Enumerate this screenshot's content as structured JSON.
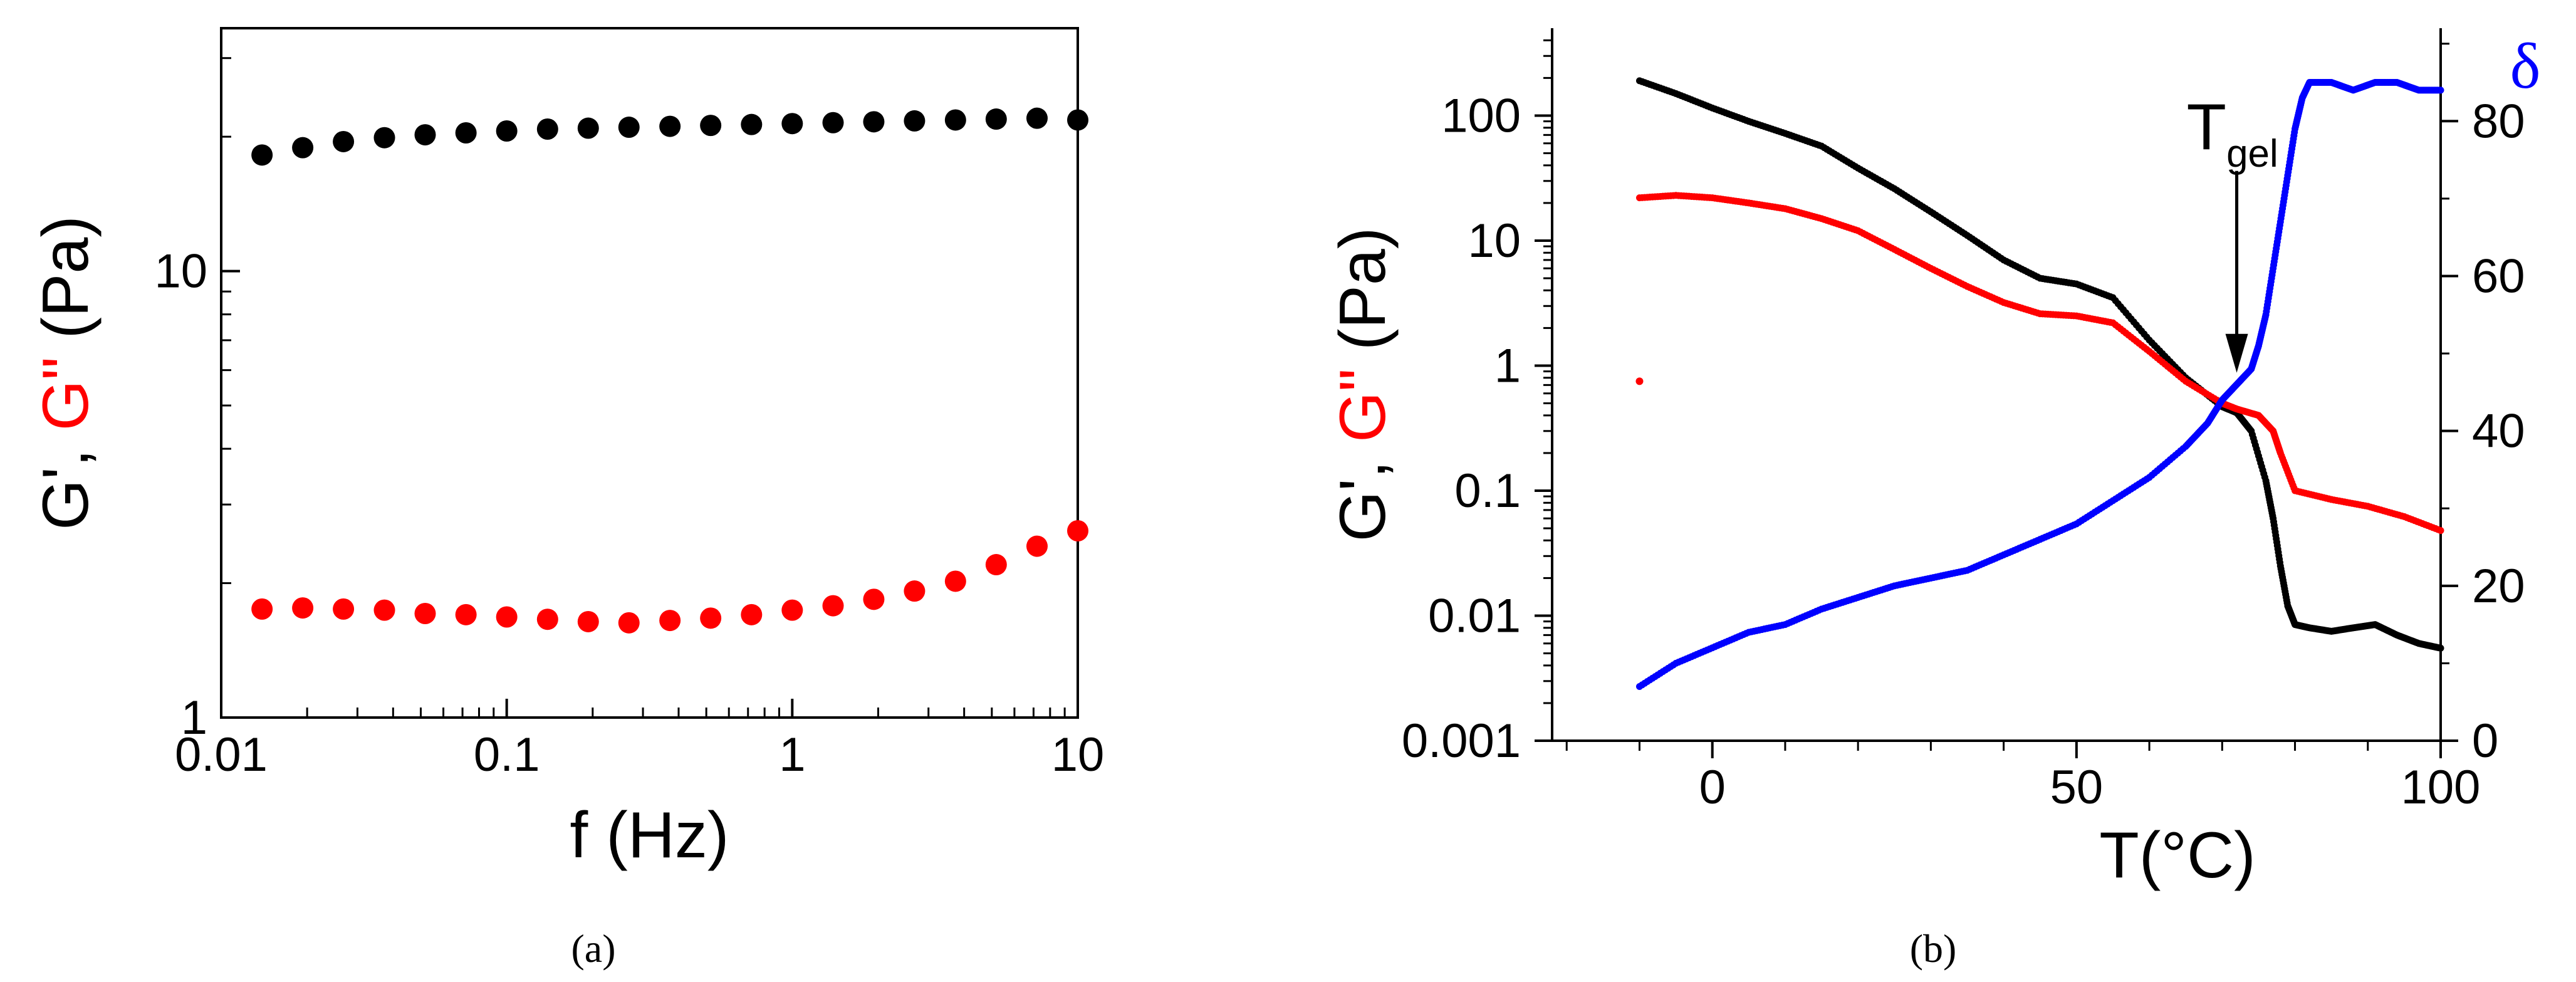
{
  "colors": {
    "gprime": "#000000",
    "gdouble": "#ff0000",
    "delta": "#0000ff",
    "axis": "#000000"
  },
  "chart_data": [
    {
      "type": "scatter",
      "panel_label": "(a)",
      "xscale": "log",
      "yscale": "log",
      "xlim": [
        0.01,
        10
      ],
      "ylim": [
        1,
        35
      ],
      "xlabel": "f (Hz)",
      "ylabel_parts": [
        "G'",
        ", ",
        "G\""
      ],
      "xticks": [
        0.01,
        0.1,
        1,
        10
      ],
      "xtick_labels": [
        "0.01",
        "0.1",
        "1",
        "10"
      ],
      "yticks": [
        1,
        10
      ],
      "ytick_labels": [
        "1",
        "10"
      ],
      "x": [
        0.0139,
        0.0193,
        0.0268,
        0.0373,
        0.0518,
        0.072,
        0.1,
        0.139,
        0.193,
        0.268,
        0.373,
        0.518,
        0.72,
        1.0,
        1.39,
        1.93,
        2.68,
        3.73,
        5.18,
        7.2,
        10.0
      ],
      "series": [
        {
          "name": "G'",
          "color": "#000000",
          "values": [
            18.2,
            18.9,
            19.5,
            19.9,
            20.2,
            20.4,
            20.6,
            20.8,
            20.9,
            21.0,
            21.1,
            21.2,
            21.3,
            21.4,
            21.5,
            21.6,
            21.7,
            21.8,
            21.9,
            22.0,
            21.8
          ]
        },
        {
          "name": "G\"",
          "color": "#ff0000",
          "values": [
            1.75,
            1.76,
            1.75,
            1.74,
            1.71,
            1.7,
            1.68,
            1.66,
            1.64,
            1.63,
            1.65,
            1.67,
            1.7,
            1.74,
            1.78,
            1.84,
            1.92,
            2.02,
            2.2,
            2.42,
            2.62
          ]
        }
      ]
    },
    {
      "type": "scatter",
      "panel_label": "(b)",
      "xscale": "linear",
      "yscale": "log",
      "xlim": [
        -22,
        100
      ],
      "ylim": [
        0.001,
        500
      ],
      "y2lim": [
        0,
        92
      ],
      "xlabel": "T(°C)",
      "ylabel_parts": [
        "G'",
        ", ",
        "G\"",
        " (Pa)"
      ],
      "y2label": "δ",
      "xticks": [
        0,
        50,
        100
      ],
      "xtick_labels": [
        "0",
        "50",
        "100"
      ],
      "yticks": [
        0.001,
        0.01,
        0.1,
        1,
        10,
        100
      ],
      "ytick_labels": [
        "0.001",
        "0.01",
        "0.1",
        "1",
        "10",
        "100"
      ],
      "y2ticks": [
        0,
        20,
        40,
        60,
        80
      ],
      "y2tick_labels": [
        "0",
        "20",
        "40",
        "60",
        "80"
      ],
      "annotation": {
        "text": "T",
        "subscript": "gel",
        "x": 72,
        "y": 0.8
      },
      "series": [
        {
          "name": "G'",
          "axis": "left",
          "color": "#000000",
          "x": [
            -10,
            -5,
            0,
            5,
            10,
            15,
            20,
            25,
            30,
            35,
            40,
            45,
            50,
            55,
            60,
            65,
            70,
            72,
            74,
            76,
            77,
            78,
            79,
            80,
            82,
            85,
            88,
            91,
            94,
            97,
            100
          ],
          "values": [
            190,
            150,
            115,
            90,
            72,
            57,
            38,
            26,
            17,
            11,
            7,
            5,
            4.5,
            3.5,
            1.6,
            0.8,
            0.47,
            0.42,
            0.3,
            0.12,
            0.06,
            0.025,
            0.012,
            0.0085,
            0.008,
            0.0075,
            0.008,
            0.0085,
            0.007,
            0.006,
            0.0055
          ]
        },
        {
          "name": "G\"",
          "axis": "left",
          "color": "#ff0000",
          "x": [
            -10,
            -5,
            0,
            5,
            10,
            15,
            20,
            25,
            30,
            35,
            40,
            45,
            50,
            55,
            60,
            65,
            70,
            72,
            75,
            77,
            78,
            80,
            85,
            90,
            95,
            100
          ],
          "values": [
            22,
            23,
            22,
            20,
            18,
            15,
            12,
            8.5,
            6,
            4.3,
            3.2,
            2.6,
            2.5,
            2.2,
            1.3,
            0.75,
            0.5,
            0.45,
            0.4,
            0.3,
            0.2,
            0.1,
            0.085,
            0.075,
            0.062,
            0.048
          ]
        },
        {
          "name": "δ",
          "axis": "right",
          "color": "#0000ff",
          "x": [
            -10,
            -5,
            0,
            5,
            10,
            15,
            20,
            25,
            30,
            35,
            40,
            45,
            50,
            55,
            60,
            65,
            68,
            70,
            72,
            74,
            75,
            76,
            77,
            78,
            79,
            80,
            81,
            82,
            85,
            88,
            91,
            94,
            97,
            100
          ],
          "values": [
            7,
            10,
            12,
            14,
            15,
            17,
            18.5,
            20,
            21,
            22,
            24,
            26,
            28,
            31,
            34,
            38,
            41,
            44,
            46,
            48,
            51,
            55,
            61,
            67,
            73,
            79,
            83,
            85,
            85,
            84,
            85,
            85,
            84,
            84
          ]
        }
      ]
    }
  ]
}
